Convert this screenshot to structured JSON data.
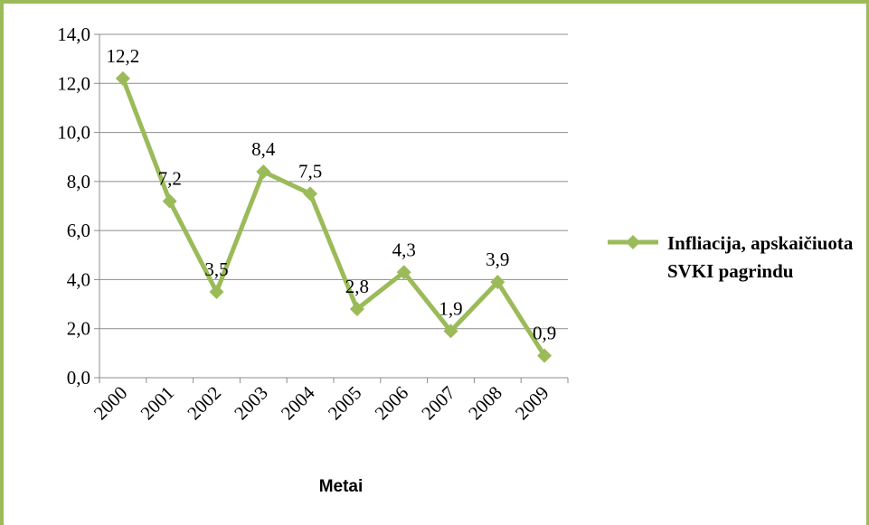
{
  "chart_data": {
    "type": "line",
    "categories": [
      "2000",
      "2001",
      "2002",
      "2003",
      "2004",
      "2005",
      "2006",
      "2007",
      "2008",
      "2009"
    ],
    "series": [
      {
        "name": "Infliacija, apskaičiuota SVKI pagrindu",
        "values": [
          12.2,
          7.2,
          3.5,
          8.4,
          7.5,
          2.8,
          4.3,
          1.9,
          3.9,
          0.9
        ],
        "labels": [
          "12,2",
          "7,2",
          "3,5",
          "8,4",
          "7,5",
          "2,8",
          "4,3",
          "1,9",
          "3,9",
          "0,9"
        ],
        "color": "#9bbb59"
      }
    ],
    "yticks": [
      "0,0",
      "2,0",
      "4,0",
      "6,0",
      "8,0",
      "10,0",
      "12,0",
      "14,0"
    ],
    "ylim": [
      0,
      14
    ],
    "xlabel": "Metai",
    "ylabel": "",
    "grid": true,
    "legend": "right"
  }
}
